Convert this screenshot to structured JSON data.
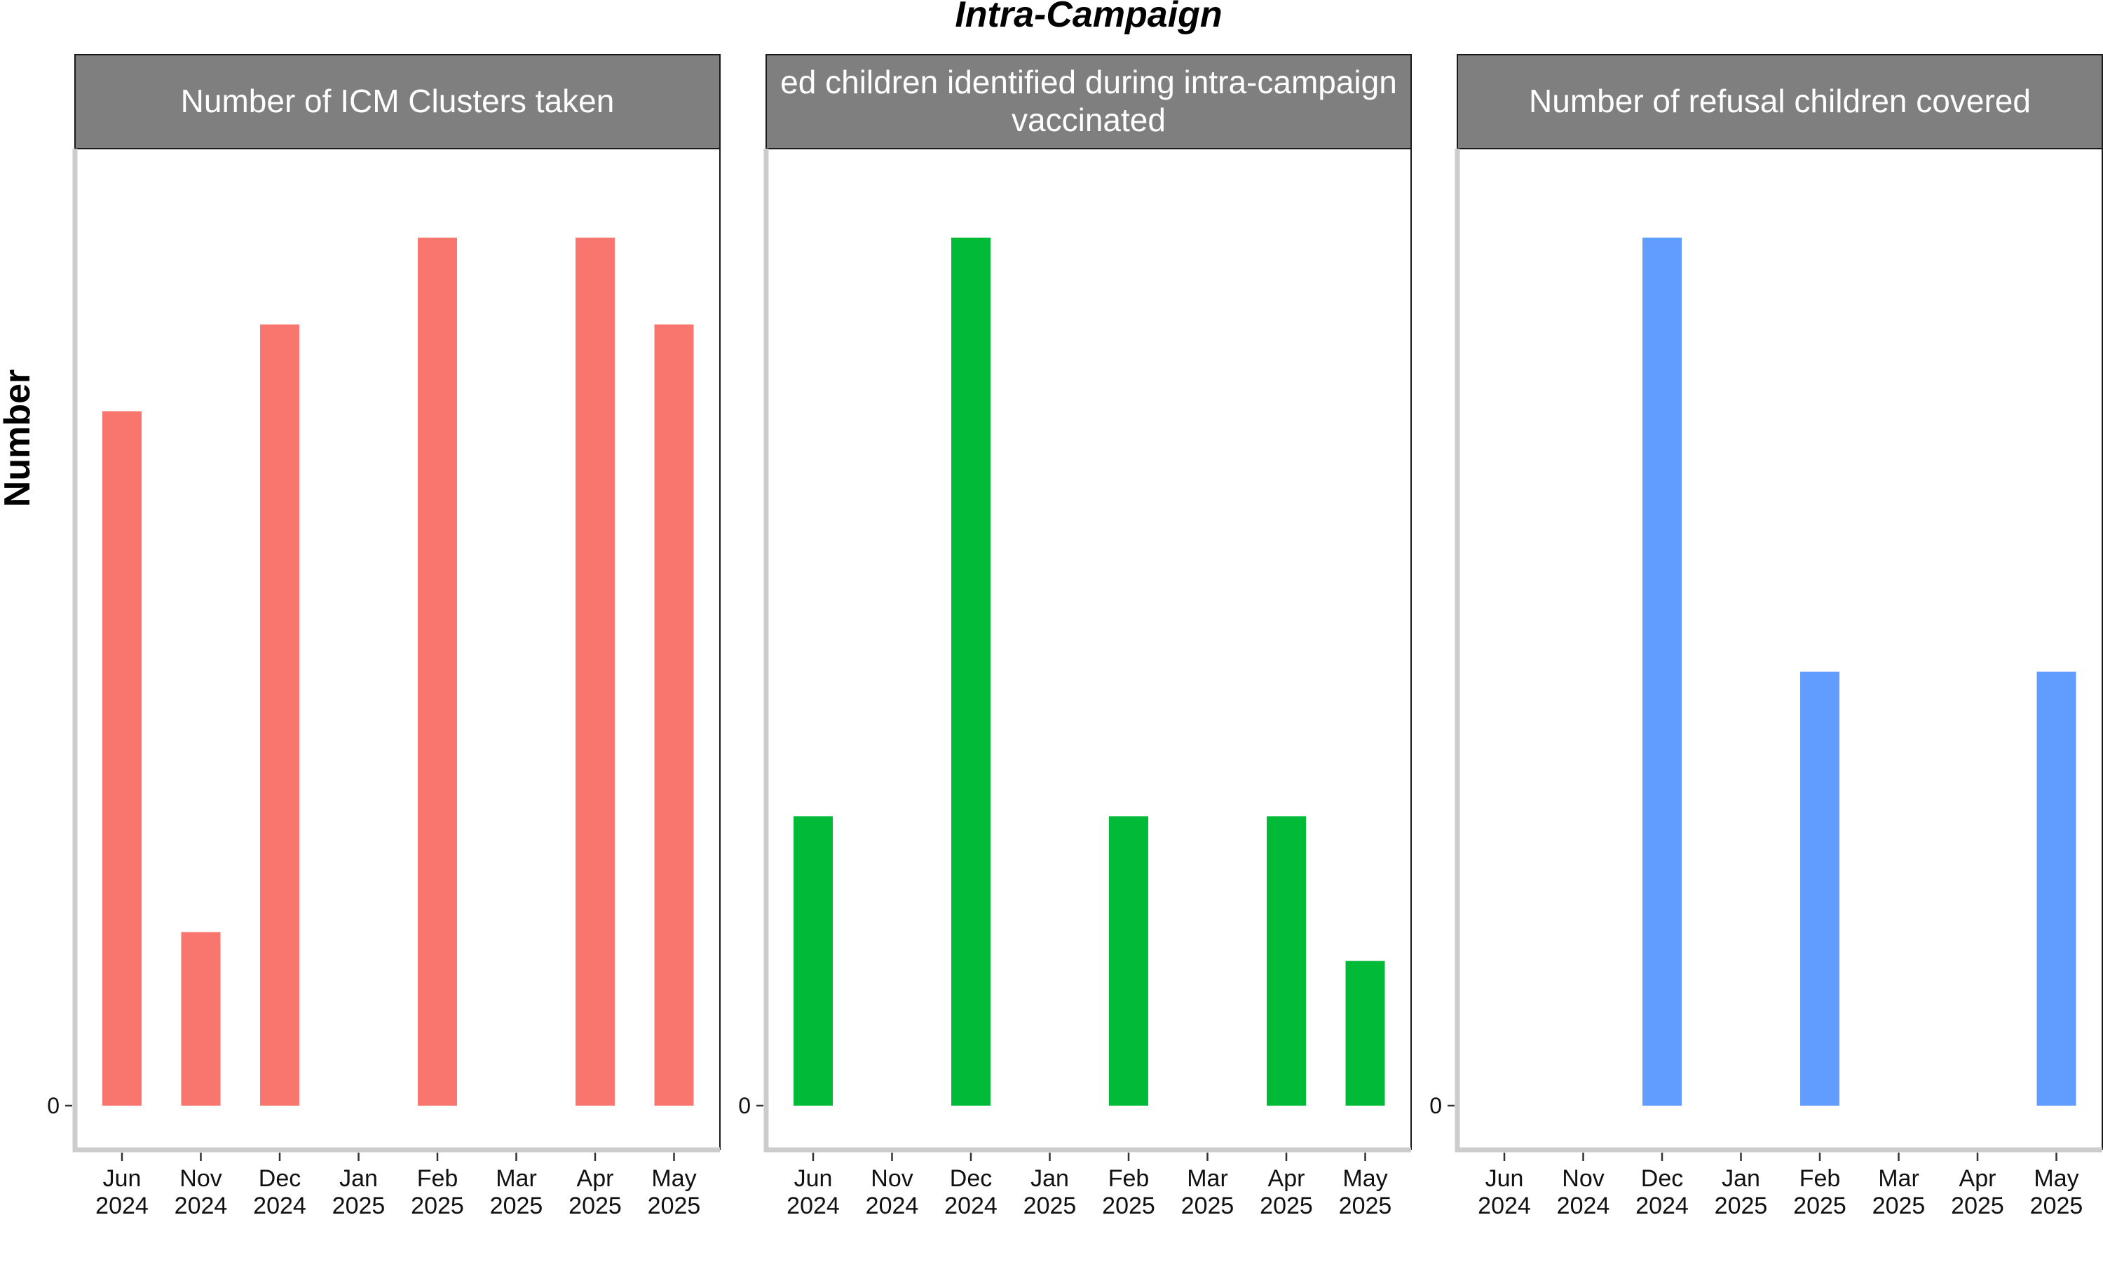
{
  "chart_data": {
    "type": "bar",
    "title": "Intra-Campaign",
    "ylabel": "Number",
    "categories": [
      [
        "Jun",
        "2024"
      ],
      [
        "Nov",
        "2024"
      ],
      [
        "Dec",
        "2024"
      ],
      [
        "Jan",
        "2025"
      ],
      [
        "Feb",
        "2025"
      ],
      [
        "Mar",
        "2025"
      ],
      [
        "Apr",
        "2025"
      ],
      [
        "May",
        "2025"
      ]
    ],
    "y_tick_label": "0",
    "panels": [
      {
        "strip_lines": [
          "Number of ICM Clusters taken"
        ],
        "color": "#F8766D",
        "values": [
          8,
          2,
          9,
          null,
          10,
          null,
          10,
          9
        ],
        "ylim": [
          0,
          10.5
        ]
      },
      {
        "strip_lines": [
          "ed children identified during intra-campaign",
          "vaccinated"
        ],
        "color": "#00BA38",
        "values": [
          2,
          null,
          6,
          null,
          2,
          null,
          2,
          1
        ],
        "ylim": [
          0,
          6.3
        ]
      },
      {
        "strip_lines": [
          "Number of refusal children covered"
        ],
        "color": "#619CFF",
        "values": [
          null,
          null,
          2,
          null,
          1,
          null,
          null,
          1
        ],
        "ylim": [
          0,
          2.1
        ]
      }
    ]
  }
}
